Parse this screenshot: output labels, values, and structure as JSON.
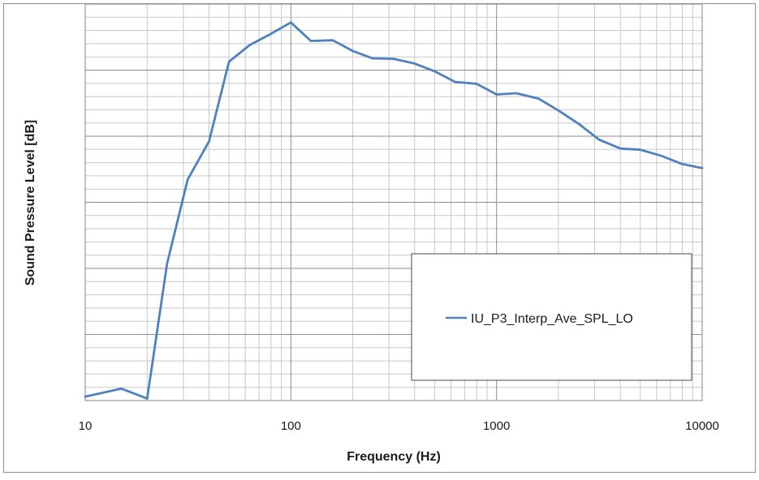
{
  "chart_data": {
    "type": "line",
    "title": "",
    "xlabel": "Frequency (Hz)",
    "ylabel": "Sound Pressure Level [dB]",
    "x_scale": "log",
    "xlim": [
      10,
      10000
    ],
    "x_ticks": [
      "10",
      "100",
      "1000",
      "10000"
    ],
    "y_ticks": [],
    "grid": true,
    "legend_position": "lower-right",
    "series": [
      {
        "name": "IU_P3_Interp_Ave_SPL_LO",
        "color": "#4f81bd",
        "x": [
          10,
          15,
          20,
          25,
          31.5,
          40,
          50,
          63,
          80,
          100,
          125,
          160,
          200,
          250,
          315,
          400,
          500,
          630,
          800,
          1000,
          1250,
          1600,
          2000,
          2500,
          3150,
          4000,
          5000,
          6300,
          8000,
          10000
        ],
        "y": [
          0.01,
          0.03,
          0.005,
          0.345,
          0.5575,
          0.6535,
          0.8545,
          0.8965,
          0.925,
          0.9535,
          0.907,
          0.9085,
          0.8815,
          0.863,
          0.862,
          0.85,
          0.8305,
          0.8035,
          0.799,
          0.772,
          0.775,
          0.7615,
          0.7315,
          0.6985,
          0.658,
          0.6355,
          0.6325,
          0.6175,
          0.5965,
          0.586
        ]
      }
    ]
  }
}
